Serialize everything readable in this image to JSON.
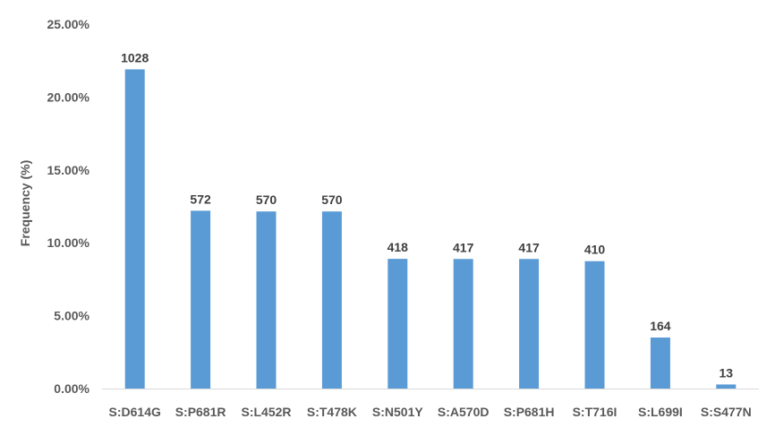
{
  "chart_data": {
    "type": "bar",
    "title": "",
    "xlabel": "",
    "ylabel": "Frequency (%)",
    "categories": [
      "S:D614G",
      "S:P681R",
      "S:L452R",
      "S:T478K",
      "S:N501Y",
      "S:A570D",
      "S:P681H",
      "S:T716I",
      "S:L699I",
      "S:S477N"
    ],
    "values": [
      21.9,
      12.2,
      12.15,
      12.15,
      8.9,
      8.89,
      8.89,
      8.74,
      3.5,
      0.28
    ],
    "data_labels": [
      "1028",
      "572",
      "570",
      "570",
      "418",
      "417",
      "417",
      "410",
      "164",
      "13"
    ],
    "ylim": [
      0,
      25
    ],
    "yticks": [
      0,
      5,
      10,
      15,
      20,
      25
    ],
    "ytick_labels": [
      "0.00%",
      "5.00%",
      "10.00%",
      "15.00%",
      "20.00%",
      "25.00%"
    ],
    "bar_color": "#5b9bd5",
    "grid": false,
    "legend": "none"
  }
}
